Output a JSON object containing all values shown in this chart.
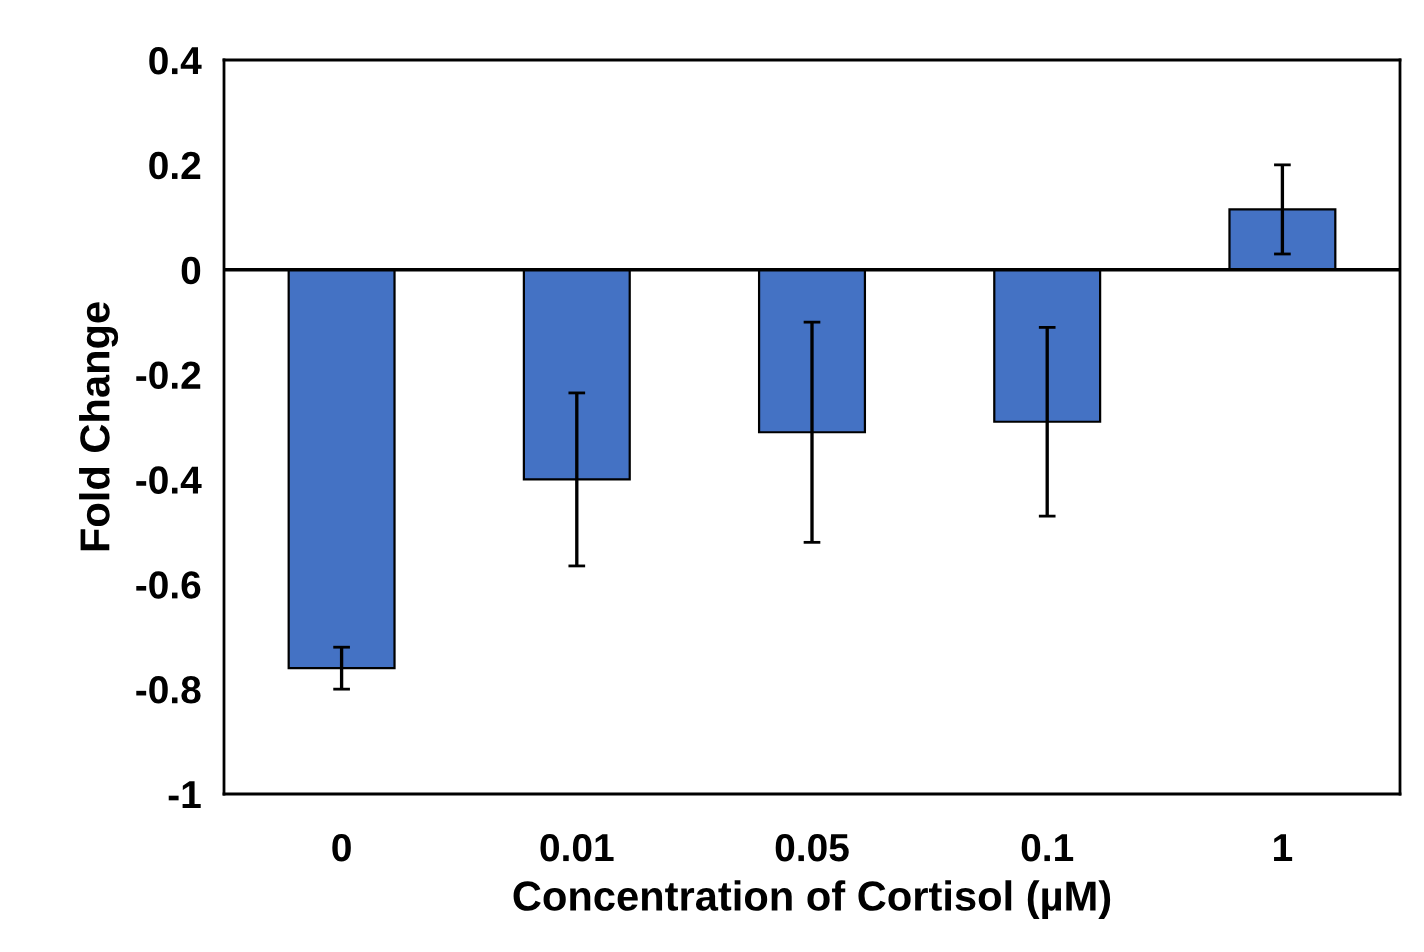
{
  "chart_data": {
    "type": "bar",
    "xlabel": "Concentration of Cortisol (µM)",
    "ylabel": "Fold Change",
    "categories": [
      "0",
      "0.01",
      "0.05",
      "0.1",
      "1"
    ],
    "values": [
      -0.76,
      -0.4,
      -0.31,
      -0.29,
      0.115
    ],
    "errors": [
      0.04,
      0.165,
      0.21,
      0.18,
      0.085
    ],
    "color": "#4472c4",
    "ylim": [
      -1,
      0.4
    ],
    "yticks": [
      {
        "value": -1,
        "label": "-1"
      },
      {
        "value": -0.8,
        "label": "-0.8"
      },
      {
        "value": -0.6,
        "label": "-0.6"
      },
      {
        "value": -0.4,
        "label": "-0.4"
      },
      {
        "value": -0.2,
        "label": "-0.2"
      },
      0,
      {
        "value": 0.2,
        "label": "0.2"
      },
      {
        "value": 0.4,
        "label": "0.4"
      }
    ],
    "ref_lines": [
      {
        "axis": "y",
        "value": 0,
        "color": "#000000"
      }
    ]
  }
}
